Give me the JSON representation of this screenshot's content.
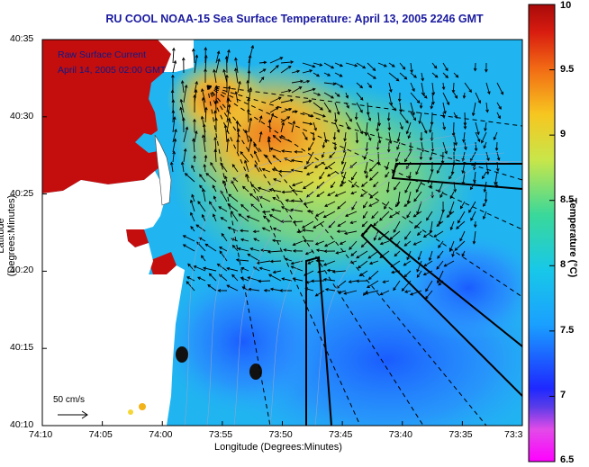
{
  "title": "RU COOL  NOAA-15  Sea Surface Temperature:  April 13, 2005 2246 GMT",
  "legend": {
    "line1": "Raw Surface Current",
    "line2": "April 14, 2005 02:00 GMT"
  },
  "scale_label": "50 cm/s",
  "x_axis": {
    "title": "Longitude (Degrees:Minutes)",
    "ticks": [
      "74:10",
      "74:05",
      "74:00",
      "73:55",
      "73:50",
      "73:45",
      "73:40",
      "73:35",
      "73:3"
    ]
  },
  "y_axis": {
    "title": "Latitude (Degrees:Minutes)",
    "ticks": [
      "40:35",
      "40:30",
      "40:25",
      "40:20",
      "40:15",
      "40:10"
    ]
  },
  "colorbar": {
    "title": "Temperature (°C)",
    "ticks": [
      "10",
      "9.5",
      "9",
      "8.5",
      "8",
      "7.5",
      "7",
      "6.5"
    ]
  },
  "colors": {
    "land": "#ffffff",
    "title": "#1a1aa0",
    "legend": "#0a1a8a"
  }
}
